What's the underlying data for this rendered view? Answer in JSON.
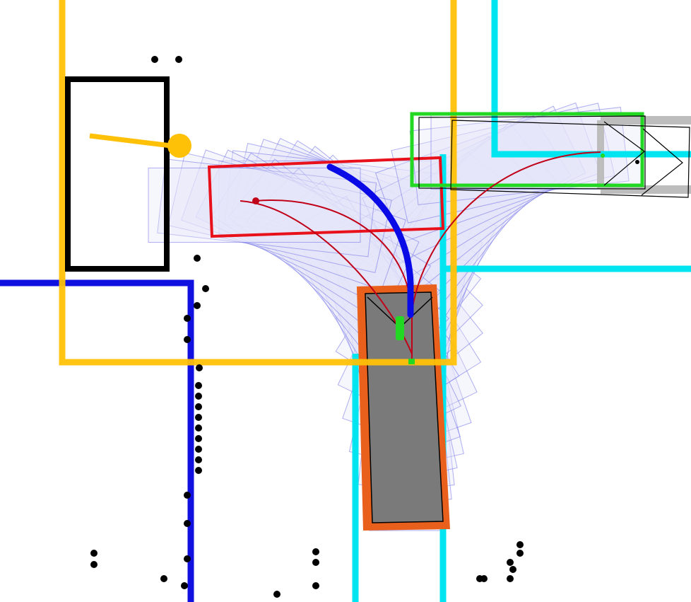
{
  "colors": {
    "background": "#ffffff",
    "yellow_zone": "#ffc107",
    "blue_zone": "#1010e0",
    "cyan_zone": "#00e5f0",
    "black_box": "#000000",
    "red_box": "#e8101a",
    "green_box": "#22d822",
    "orange_box": "#e8601c",
    "grey_box": "#7a7a7a",
    "light_grey": "#bdbdbd",
    "sweep_stroke": "#7070e8",
    "sweep_fill": "#e6e6fa",
    "path_red": "#c00018",
    "path_blue": "#0a0ae6",
    "goal_marker": "#22d822",
    "obstacle": "#000000",
    "pointer": "#ffc107"
  },
  "icons": {
    "obstacle_point": "obstacle-point-icon",
    "pointer_knob": "pointer-knob-icon",
    "start_marker": "start-marker-icon",
    "goal_marker": "goal-marker-icon"
  }
}
